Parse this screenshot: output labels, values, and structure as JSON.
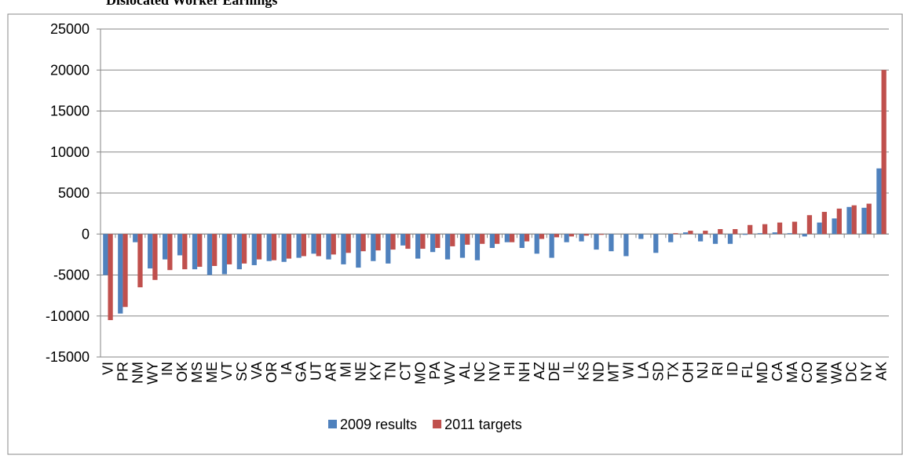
{
  "chart_data": {
    "type": "bar",
    "title": "Dislocated Worker Earnings",
    "categories": [
      "VI",
      "PR",
      "NM",
      "WY",
      "IN",
      "OK",
      "MS",
      "ME",
      "VT",
      "SC",
      "VA",
      "OR",
      "IA",
      "GA",
      "UT",
      "AR",
      "MI",
      "NE",
      "KY",
      "TN",
      "CT",
      "MO",
      "PA",
      "WV",
      "AL",
      "NC",
      "NV",
      "HI",
      "NH",
      "AZ",
      "DE",
      "IL",
      "KS",
      "ND",
      "MT",
      "WI",
      "LA",
      "SD",
      "TX",
      "OH",
      "NJ",
      "RI",
      "ID",
      "FL",
      "MD",
      "CA",
      "MA",
      "CO",
      "MN",
      "WA",
      "DC",
      "NY",
      "AK"
    ],
    "series": [
      {
        "name": "2009 results",
        "color": "#4f81bd",
        "values": [
          -5000,
          -9700,
          -1000,
          -4200,
          -3100,
          -2600,
          -4300,
          -5000,
          -4900,
          -4300,
          -3800,
          -3300,
          -3400,
          -2900,
          -2400,
          -3100,
          -3700,
          -4100,
          -3300,
          -3600,
          -1400,
          -3000,
          -2200,
          -3100,
          -2900,
          -3200,
          -1700,
          -1000,
          -1700,
          -2400,
          -2900,
          -1000,
          -900,
          -1900,
          -2100,
          -2700,
          -600,
          -2300,
          -1000,
          200,
          -900,
          -1200,
          -1200,
          -100,
          100,
          200,
          100,
          -300,
          1400,
          1900,
          3300,
          3200,
          8000
        ]
      },
      {
        "name": "2011 targets",
        "color": "#c0504d",
        "values": [
          -10500,
          -8900,
          -6500,
          -5600,
          -4400,
          -4300,
          -4000,
          -3900,
          -3700,
          -3600,
          -3100,
          -3200,
          -3000,
          -2700,
          -2700,
          -2500,
          -2300,
          -2100,
          -2000,
          -1900,
          -1800,
          -1800,
          -1700,
          -1500,
          -1300,
          -1200,
          -1200,
          -1000,
          -900,
          -600,
          -400,
          -300,
          -200,
          -100,
          0,
          0,
          0,
          0,
          100,
          400,
          400,
          600,
          600,
          1100,
          1200,
          1400,
          1500,
          2300,
          2700,
          3100,
          3500,
          3700,
          20000
        ]
      }
    ],
    "ylim": [
      -15000,
      25000
    ],
    "yticks": [
      -15000,
      -10000,
      -5000,
      0,
      5000,
      10000,
      15000,
      20000,
      25000
    ],
    "grid": true,
    "legend": "bottom"
  }
}
